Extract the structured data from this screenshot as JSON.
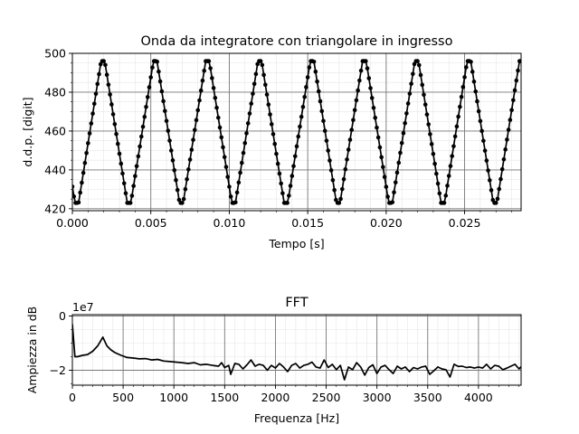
{
  "chart_data": [
    {
      "type": "line",
      "title": "Onda da integratore con triangolare in ingresso",
      "xlabel": "Tempo [s]",
      "ylabel": "d.d.p. [digit]",
      "xlim": [
        0,
        0.0286
      ],
      "ylim": [
        419,
        500
      ],
      "xticks": [
        0.0,
        0.005,
        0.01,
        0.015,
        0.02,
        0.025
      ],
      "xtick_labels": [
        "0.000",
        "0.005",
        "0.010",
        "0.015",
        "0.020",
        "0.025"
      ],
      "yticks": [
        420,
        440,
        460,
        480,
        500
      ],
      "ytick_labels": [
        "420",
        "440",
        "460",
        "480",
        "500"
      ],
      "grid": true,
      "minor_grid": true,
      "markers": true,
      "line_color": "#000000",
      "period_s": 0.003333,
      "phase_s": 0.00028,
      "sample_interval_s": 0.0001,
      "min_value": 423,
      "max_value": 496,
      "waveform": "triangle-clipped"
    },
    {
      "type": "line",
      "title": "FFT",
      "xlabel": "Frequenza [Hz]",
      "ylabel": "Ampiezza in dB",
      "offset_text": "1e7",
      "xlim": [
        0,
        4420
      ],
      "ylim": [
        -2.55,
        0.05
      ],
      "xticks": [
        0,
        500,
        1000,
        1500,
        2000,
        2500,
        3000,
        3500,
        4000
      ],
      "xtick_labels": [
        "0",
        "500",
        "1000",
        "1500",
        "2000",
        "2500",
        "3000",
        "3500",
        "4000"
      ],
      "yticks": [
        0,
        -2
      ],
      "ytick_labels": [
        "0",
        "−2"
      ],
      "grid": true,
      "minor_grid": true,
      "line_color": "#000000",
      "x": [
        0,
        25,
        50,
        100,
        150,
        200,
        250,
        300,
        340,
        380,
        420,
        480,
        540,
        600,
        660,
        720,
        780,
        840,
        900,
        960,
        1020,
        1080,
        1140,
        1200,
        1260,
        1320,
        1380,
        1440,
        1470,
        1500,
        1540,
        1560,
        1600,
        1640,
        1680,
        1720,
        1760,
        1800,
        1840,
        1880,
        1920,
        1960,
        2000,
        2040,
        2080,
        2120,
        2160,
        2200,
        2240,
        2280,
        2320,
        2360,
        2400,
        2440,
        2480,
        2520,
        2560,
        2600,
        2640,
        2680,
        2720,
        2760,
        2800,
        2840,
        2880,
        2920,
        2960,
        3000,
        3040,
        3080,
        3120,
        3160,
        3200,
        3240,
        3280,
        3320,
        3360,
        3400,
        3440,
        3480,
        3520,
        3560,
        3600,
        3640,
        3680,
        3720,
        3760,
        3800,
        3840,
        3880,
        3920,
        3960,
        4000,
        4040,
        4080,
        4120,
        4160,
        4200,
        4240,
        4280,
        4320,
        4360,
        4400,
        4420
      ],
      "y": [
        -0.3,
        -1.5,
        -1.5,
        -1.45,
        -1.42,
        -1.3,
        -1.1,
        -0.78,
        -1.1,
        -1.25,
        -1.35,
        -1.45,
        -1.53,
        -1.55,
        -1.58,
        -1.57,
        -1.62,
        -1.6,
        -1.66,
        -1.68,
        -1.7,
        -1.72,
        -1.75,
        -1.72,
        -1.8,
        -1.78,
        -1.82,
        -1.85,
        -1.72,
        -1.9,
        -1.82,
        -2.15,
        -1.75,
        -1.78,
        -1.95,
        -1.8,
        -1.62,
        -1.85,
        -1.78,
        -1.82,
        -2.0,
        -1.82,
        -1.92,
        -1.75,
        -1.88,
        -2.05,
        -1.82,
        -1.75,
        -1.92,
        -1.82,
        -1.78,
        -1.7,
        -1.88,
        -1.92,
        -1.62,
        -1.9,
        -1.78,
        -1.98,
        -1.82,
        -2.35,
        -1.88,
        -1.98,
        -1.72,
        -1.88,
        -2.18,
        -1.9,
        -1.8,
        -2.12,
        -1.88,
        -1.82,
        -1.98,
        -2.12,
        -1.85,
        -1.95,
        -1.88,
        -2.05,
        -1.9,
        -1.95,
        -1.88,
        -1.85,
        -2.15,
        -2.02,
        -1.88,
        -1.95,
        -1.98,
        -2.25,
        -1.78,
        -1.86,
        -1.85,
        -1.9,
        -1.88,
        -1.92,
        -1.88,
        -1.92,
        -1.78,
        -1.95,
        -1.82,
        -1.85,
        -1.98,
        -1.92,
        -1.85,
        -1.78,
        -1.95,
        -1.87
      ]
    }
  ]
}
